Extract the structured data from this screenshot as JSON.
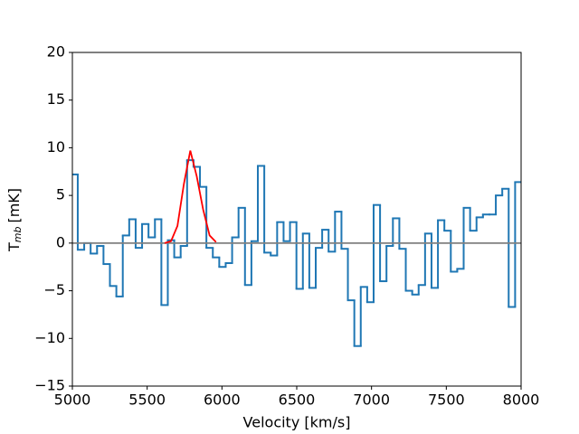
{
  "chart_data": {
    "type": "line",
    "xlabel": "Velocity [km/s]",
    "ylabel_parts": [
      "T",
      "mb",
      "[mK]"
    ],
    "xlim": [
      5000,
      8000
    ],
    "ylim": [
      -15,
      20
    ],
    "xticks": [
      5000,
      5500,
      6000,
      6500,
      7000,
      7500,
      8000
    ],
    "yticks": [
      {
        "value": -15,
        "label": "−15"
      },
      {
        "value": -10,
        "label": "−10"
      },
      {
        "value": -5,
        "label": "−5"
      },
      0,
      5,
      10,
      15,
      20
    ],
    "series": [
      {
        "color": "#1f77b4",
        "drawstyle": "steps-mid",
        "x": [
          5014.5,
          5057.5,
          5100.5,
          5143.5,
          5186.5,
          5229.5,
          5272.5,
          5315.5,
          5358.5,
          5401.5,
          5444.5,
          5487.5,
          5530.5,
          5573.5,
          5616.5,
          5659.5,
          5702.5,
          5745.5,
          5788.5,
          5831.5,
          5874.5,
          5917.5,
          5960.5,
          6003.5,
          6046.5,
          6089.5,
          6132.5,
          6175.5,
          6218.5,
          6261.5,
          6304.5,
          6347.5,
          6390.5,
          6433.5,
          6476.5,
          6519.5,
          6562.5,
          6605.5,
          6648.5,
          6691.5,
          6734.5,
          6777.5,
          6820.5,
          6863.5,
          6906.5,
          6949.5,
          6992.5,
          7035.5,
          7078.5,
          7121.5,
          7164.5,
          7207.5,
          7250.5,
          7293.5,
          7336.5,
          7379.5,
          7422.5,
          7465.5,
          7508.5,
          7551.5,
          7594.5,
          7637.5,
          7680.5,
          7723.5,
          7766.5,
          7809.5,
          7852.5,
          7895.5,
          7938.5,
          7981.5
        ],
        "values": [
          7.2,
          -0.7,
          0.0,
          -1.1,
          -0.3,
          -2.2,
          -4.5,
          -5.6,
          0.8,
          2.5,
          -0.5,
          2.0,
          0.6,
          2.5,
          -6.5,
          0.3,
          -1.5,
          -0.3,
          8.7,
          8.0,
          5.9,
          -0.5,
          -1.5,
          -2.5,
          -2.1,
          0.6,
          3.7,
          -4.4,
          0.2,
          8.1,
          -1.0,
          -1.3,
          2.2,
          0.2,
          2.2,
          -4.8,
          1.0,
          -4.7,
          -0.5,
          1.4,
          -0.9,
          3.3,
          -0.6,
          -6.0,
          -10.8,
          -4.6,
          -6.2,
          4.0,
          -4.0,
          -0.3,
          2.6,
          -0.6,
          -5.0,
          -5.4,
          -4.4,
          1.0,
          -4.7,
          2.4,
          1.3,
          -3.0,
          -2.7,
          3.7,
          1.3,
          2.7,
          3.0,
          3.0,
          5.0,
          5.7,
          -6.7,
          6.4
        ]
      },
      {
        "color": "#808080",
        "x": [
          5000,
          8000
        ],
        "values": [
          0,
          0
        ]
      },
      {
        "color": "#ff0000",
        "x": [
          5616.5,
          5659.5,
          5702.5,
          5745.5,
          5788.5,
          5831.5,
          5874.5,
          5917.5,
          5960.5
        ],
        "values": [
          0.0,
          0.2,
          1.8,
          6.2,
          9.7,
          7.0,
          3.5,
          0.8,
          0.1
        ]
      }
    ]
  }
}
